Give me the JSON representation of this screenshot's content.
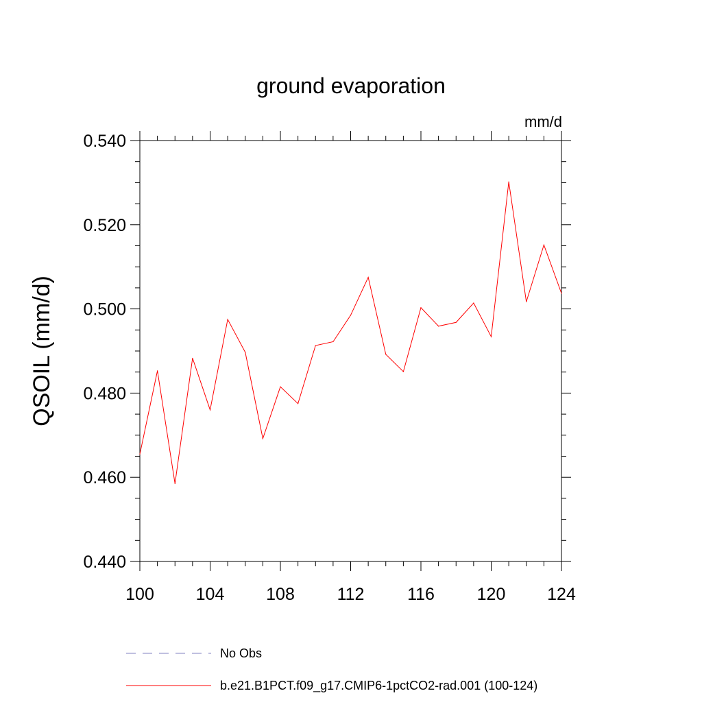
{
  "chart_data": {
    "type": "line",
    "title": "ground evaporation",
    "units_label": "mm/d",
    "xlabel": "",
    "ylabel": "QSOIL  (mm/d)",
    "xlim": [
      100,
      124
    ],
    "ylim": [
      0.44,
      0.54
    ],
    "x_ticks": [
      "100",
      "104",
      "108",
      "112",
      "116",
      "120",
      "124"
    ],
    "y_ticks": [
      "0.440",
      "0.460",
      "0.480",
      "0.500",
      "0.520",
      "0.540"
    ],
    "x": [
      100,
      101,
      102,
      103,
      104,
      105,
      106,
      107,
      108,
      109,
      110,
      111,
      112,
      113,
      114,
      115,
      116,
      117,
      118,
      119,
      120,
      121,
      122,
      123,
      124
    ],
    "series": [
      {
        "name": "b.e21.B1PCT.f09_g17.CMIP6-1pctCO2-rad.001 (100-124)",
        "color": "#ff0000",
        "values": [
          0.4655,
          0.4853,
          0.4585,
          0.4883,
          0.476,
          0.4975,
          0.4897,
          0.4692,
          0.4815,
          0.4775,
          0.4913,
          0.4922,
          0.4985,
          0.5075,
          0.4892,
          0.4851,
          0.5003,
          0.4959,
          0.4968,
          0.5014,
          0.4934,
          0.5302,
          0.5017,
          0.5152,
          0.5037
        ]
      }
    ],
    "legend": {
      "placement": "bottom",
      "entries": [
        {
          "label": "No Obs",
          "color": "#8080c0",
          "style": "dashed"
        },
        {
          "label": "b.e21.B1PCT.f09_g17.CMIP6-1pctCO2-rad.001 (100-124)",
          "color": "#ff0000",
          "style": "solid"
        }
      ]
    },
    "grid": false
  }
}
